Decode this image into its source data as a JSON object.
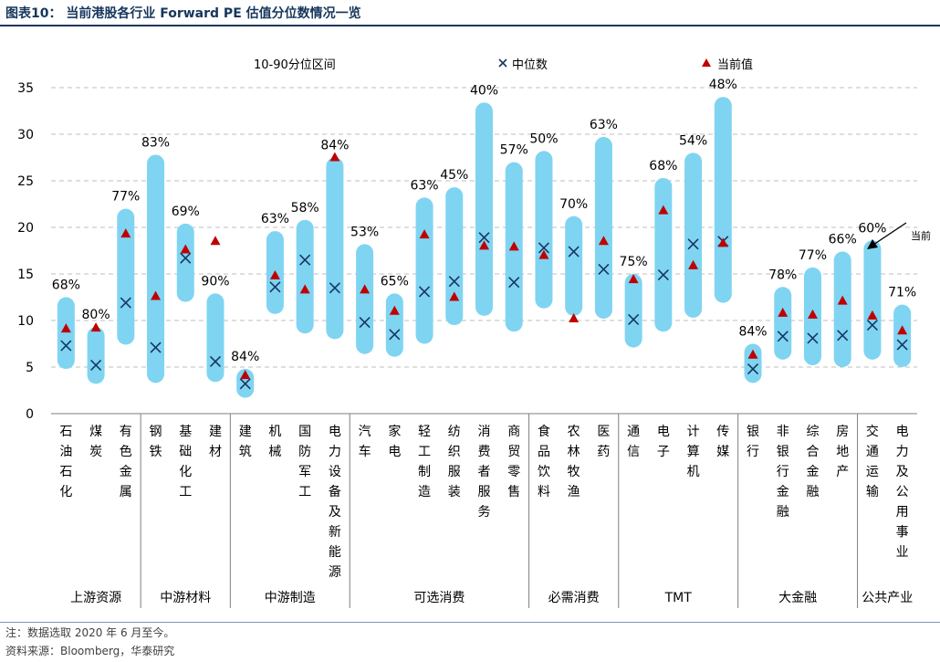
{
  "figure": {
    "title": "图表10：  当前港股各行业 Forward PE 估值分位数情况一览",
    "note": "注：数据选取 2020 年 6 月至今。",
    "source": "资料来源：Bloomberg，华泰研究"
  },
  "chart_data": {
    "type": "range-bar",
    "ylim": [
      0,
      35
    ],
    "yticks": [
      0,
      5,
      10,
      15,
      20,
      25,
      30,
      35
    ],
    "grid": "horizontal dashed",
    "legend": {
      "placement": "top",
      "range_label": "10-90分位区间",
      "median_label": "中位数",
      "current_label": "当前值"
    },
    "annotation": "当前",
    "colors": {
      "range": "#7fd4f2",
      "median": "#17375e",
      "current": "#c00000",
      "grid": "#bfbfbf"
    },
    "groups": [
      {
        "name": "上游资源",
        "size": 3
      },
      {
        "name": "中游材料",
        "size": 3
      },
      {
        "name": "中游制造",
        "size": 4
      },
      {
        "name": "可选消费",
        "size": 6
      },
      {
        "name": "必需消费",
        "size": 3
      },
      {
        "name": "TMT",
        "size": 4
      },
      {
        "name": "大金融",
        "size": 4
      },
      {
        "name": "公共产业",
        "size": 2
      }
    ],
    "industries": [
      {
        "name": "石油石化",
        "p10": 4.8,
        "p90": 12.5,
        "median": 7.3,
        "current": 9.1,
        "pct": "68%"
      },
      {
        "name": "煤炭",
        "p10": 3.2,
        "p90": 9.3,
        "median": 5.2,
        "current": 9.2,
        "pct": "80%"
      },
      {
        "name": "有色金属",
        "p10": 7.4,
        "p90": 22.0,
        "median": 11.9,
        "current": 19.3,
        "pct": "77%"
      },
      {
        "name": "钢铁",
        "p10": 3.3,
        "p90": 27.8,
        "median": 7.1,
        "current": 12.6,
        "pct": "83%"
      },
      {
        "name": "基础化工",
        "p10": 12.0,
        "p90": 20.4,
        "median": 16.7,
        "current": 17.6,
        "pct": "69%"
      },
      {
        "name": "建材",
        "p10": 3.4,
        "p90": 12.9,
        "median": 5.6,
        "current": 18.5,
        "pct": "90%"
      },
      {
        "name": "建筑",
        "p10": 1.7,
        "p90": 4.8,
        "median": 3.2,
        "current": 4.1,
        "pct": "84%"
      },
      {
        "name": "机械",
        "p10": 10.7,
        "p90": 19.6,
        "median": 13.6,
        "current": 14.8,
        "pct": "63%"
      },
      {
        "name": "国防军工",
        "p10": 8.6,
        "p90": 20.8,
        "median": 16.5,
        "current": 13.3,
        "pct": "58%"
      },
      {
        "name": "电力设备及新能源",
        "p10": 8.0,
        "p90": 27.5,
        "median": 13.5,
        "current": 27.5,
        "pct": "84%"
      },
      {
        "name": "汽车",
        "p10": 6.4,
        "p90": 18.2,
        "median": 9.8,
        "current": 13.3,
        "pct": "53%"
      },
      {
        "name": "家电",
        "p10": 6.1,
        "p90": 12.9,
        "median": 8.5,
        "current": 11.0,
        "pct": "65%"
      },
      {
        "name": "轻工制造",
        "p10": 7.5,
        "p90": 23.2,
        "median": 13.1,
        "current": 19.2,
        "pct": "63%"
      },
      {
        "name": "纺织服装",
        "p10": 9.5,
        "p90": 24.3,
        "median": 14.2,
        "current": 12.5,
        "pct": "45%"
      },
      {
        "name": "消费者服务",
        "p10": 10.5,
        "p90": 33.4,
        "median": 18.9,
        "current": 18.0,
        "pct": "40%"
      },
      {
        "name": "商贸零售",
        "p10": 8.8,
        "p90": 27.0,
        "median": 14.1,
        "current": 17.9,
        "pct": "57%"
      },
      {
        "name": "食品饮料",
        "p10": 11.3,
        "p90": 28.2,
        "median": 17.8,
        "current": 17.0,
        "pct": "50%"
      },
      {
        "name": "农林牧渔",
        "p10": 10.5,
        "p90": 21.2,
        "median": 17.4,
        "current": 10.2,
        "pct": "70%"
      },
      {
        "name": "医药",
        "p10": 10.2,
        "p90": 29.7,
        "median": 15.5,
        "current": 18.5,
        "pct": "63%"
      },
      {
        "name": "通信",
        "p10": 7.1,
        "p90": 15.0,
        "median": 10.1,
        "current": 14.4,
        "pct": "75%"
      },
      {
        "name": "电子",
        "p10": 8.8,
        "p90": 25.3,
        "median": 14.9,
        "current": 21.8,
        "pct": "68%"
      },
      {
        "name": "计算机",
        "p10": 10.3,
        "p90": 28.0,
        "median": 18.2,
        "current": 15.9,
        "pct": "54%"
      },
      {
        "name": "传媒",
        "p10": 11.9,
        "p90": 34.0,
        "median": 18.5,
        "current": 18.3,
        "pct": "48%"
      },
      {
        "name": "银行",
        "p10": 3.3,
        "p90": 7.5,
        "median": 4.8,
        "current": 6.3,
        "pct": "84%"
      },
      {
        "name": "非银行金融",
        "p10": 5.8,
        "p90": 13.6,
        "median": 8.3,
        "current": 10.8,
        "pct": "78%"
      },
      {
        "name": "综合金融",
        "p10": 5.2,
        "p90": 15.7,
        "median": 8.1,
        "current": 10.6,
        "pct": "77%"
      },
      {
        "name": "房地产",
        "p10": 5.0,
        "p90": 17.4,
        "median": 8.4,
        "current": 12.1,
        "pct": "66%"
      },
      {
        "name": "交通运输",
        "p10": 5.8,
        "p90": 18.6,
        "median": 9.5,
        "current": 10.5,
        "pct": "60%"
      },
      {
        "name": "电力及公用事业",
        "p10": 5.0,
        "p90": 11.7,
        "median": 7.4,
        "current": 8.9,
        "pct": "71%"
      }
    ]
  }
}
